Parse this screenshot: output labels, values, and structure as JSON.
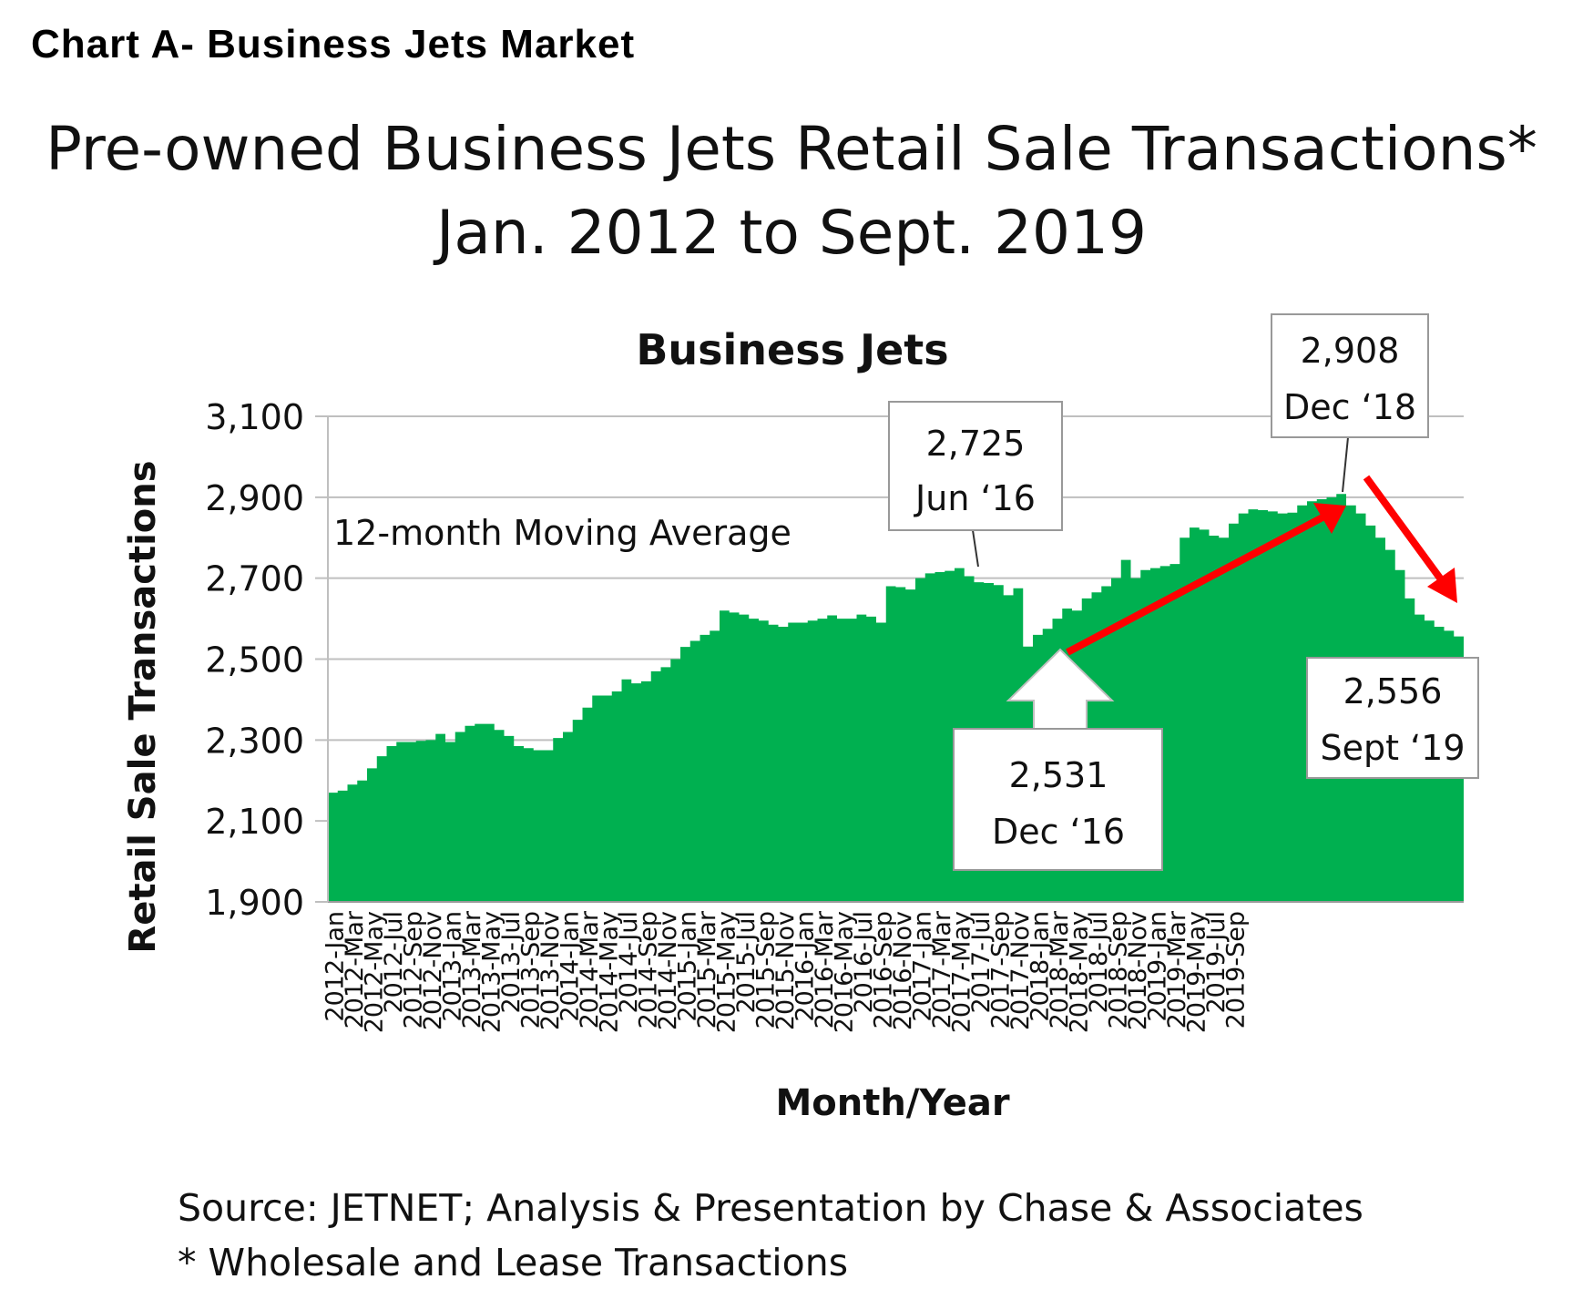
{
  "header": {
    "chart_label": "Chart A- Business Jets Market",
    "title_line1": "Pre-owned Business Jets Retail Sale Transactions*",
    "title_line2": "Jan. 2012 to Sept. 2019"
  },
  "footer": {
    "source": "Source: JETNET; Analysis & Presentation by Chase & Associates",
    "note": "* Wholesale and Lease Transactions"
  },
  "colors": {
    "fill": "#00b050",
    "arrow": "#ff0000",
    "grid": "#bfbfbf"
  },
  "chart_data": {
    "type": "area",
    "title": "Business Jets",
    "xlabel": "Month/Year",
    "ylabel": "Retail Sale Transactions",
    "ylim": [
      1900,
      3100
    ],
    "yticks": [
      1900,
      2100,
      2300,
      2500,
      2700,
      2900,
      3100
    ],
    "ytick_labels": [
      "1,900",
      "2,100",
      "2,300",
      "2,500",
      "2,700",
      "2,900",
      "3,100"
    ],
    "grid": true,
    "inline_label": "12-month Moving Average",
    "xtick_labels": [
      "2012-Jan",
      "2012-Mar",
      "2012-May",
      "2012-Jul",
      "2012-Sep",
      "2012-Nov",
      "2013-Jan",
      "2013-Mar",
      "2013-May",
      "2013-Jul",
      "2013-Sep",
      "2013-Nov",
      "2014-Jan",
      "2014-Mar",
      "2014-May",
      "2014-Jul",
      "2014-Sep",
      "2014-Nov",
      "2015-Jan",
      "2015-Mar",
      "2015-May",
      "2015-Jul",
      "2015-Sep",
      "2015-Nov",
      "2016-Jan",
      "2016-Mar",
      "2016-May",
      "2016-Jul",
      "2016-Sep",
      "2016-Nov",
      "2017-Jan",
      "2017-Mar",
      "2017-May",
      "2017-Jul",
      "2017-Sep",
      "2017-Nov",
      "2018-Jan",
      "2018-Mar",
      "2018-May",
      "2018-Jul",
      "2018-Sep",
      "2018-Nov",
      "2019-Jan",
      "2019-Mar",
      "2019-May",
      "2019-Jul",
      "2019-Sep"
    ],
    "series": [
      {
        "name": "12-month Moving Average",
        "values": [
          2170,
          2175,
          2190,
          2200,
          2230,
          2260,
          2285,
          2295,
          2295,
          2298,
          2300,
          2315,
          2295,
          2320,
          2335,
          2340,
          2340,
          2325,
          2310,
          2285,
          2280,
          2275,
          2275,
          2305,
          2320,
          2350,
          2380,
          2410,
          2410,
          2420,
          2450,
          2440,
          2445,
          2470,
          2480,
          2500,
          2530,
          2545,
          2560,
          2570,
          2620,
          2615,
          2610,
          2600,
          2595,
          2585,
          2580,
          2590,
          2590,
          2595,
          2600,
          2608,
          2600,
          2600,
          2610,
          2605,
          2590,
          2680,
          2678,
          2672,
          2700,
          2712,
          2715,
          2718,
          2725,
          2705,
          2690,
          2688,
          2683,
          2658,
          2675,
          2531,
          2560,
          2575,
          2600,
          2625,
          2620,
          2650,
          2665,
          2680,
          2700,
          2745,
          2700,
          2720,
          2725,
          2730,
          2735,
          2800,
          2825,
          2820,
          2805,
          2800,
          2835,
          2860,
          2870,
          2868,
          2865,
          2860,
          2862,
          2880,
          2890,
          2895,
          2900,
          2908,
          2880,
          2860,
          2830,
          2800,
          2770,
          2720,
          2650,
          2610,
          2595,
          2580,
          2570,
          2556
        ]
      }
    ],
    "annotations": [
      {
        "value": "2,725",
        "label": "Jun ‘16",
        "index": 64
      },
      {
        "value": "2,908",
        "label": "Dec ‘18",
        "index": 103
      },
      {
        "value": "2,531",
        "label": "Dec ‘16",
        "index": 71
      },
      {
        "value": "2,556",
        "label": "Sept ‘19",
        "index": 116
      }
    ]
  }
}
